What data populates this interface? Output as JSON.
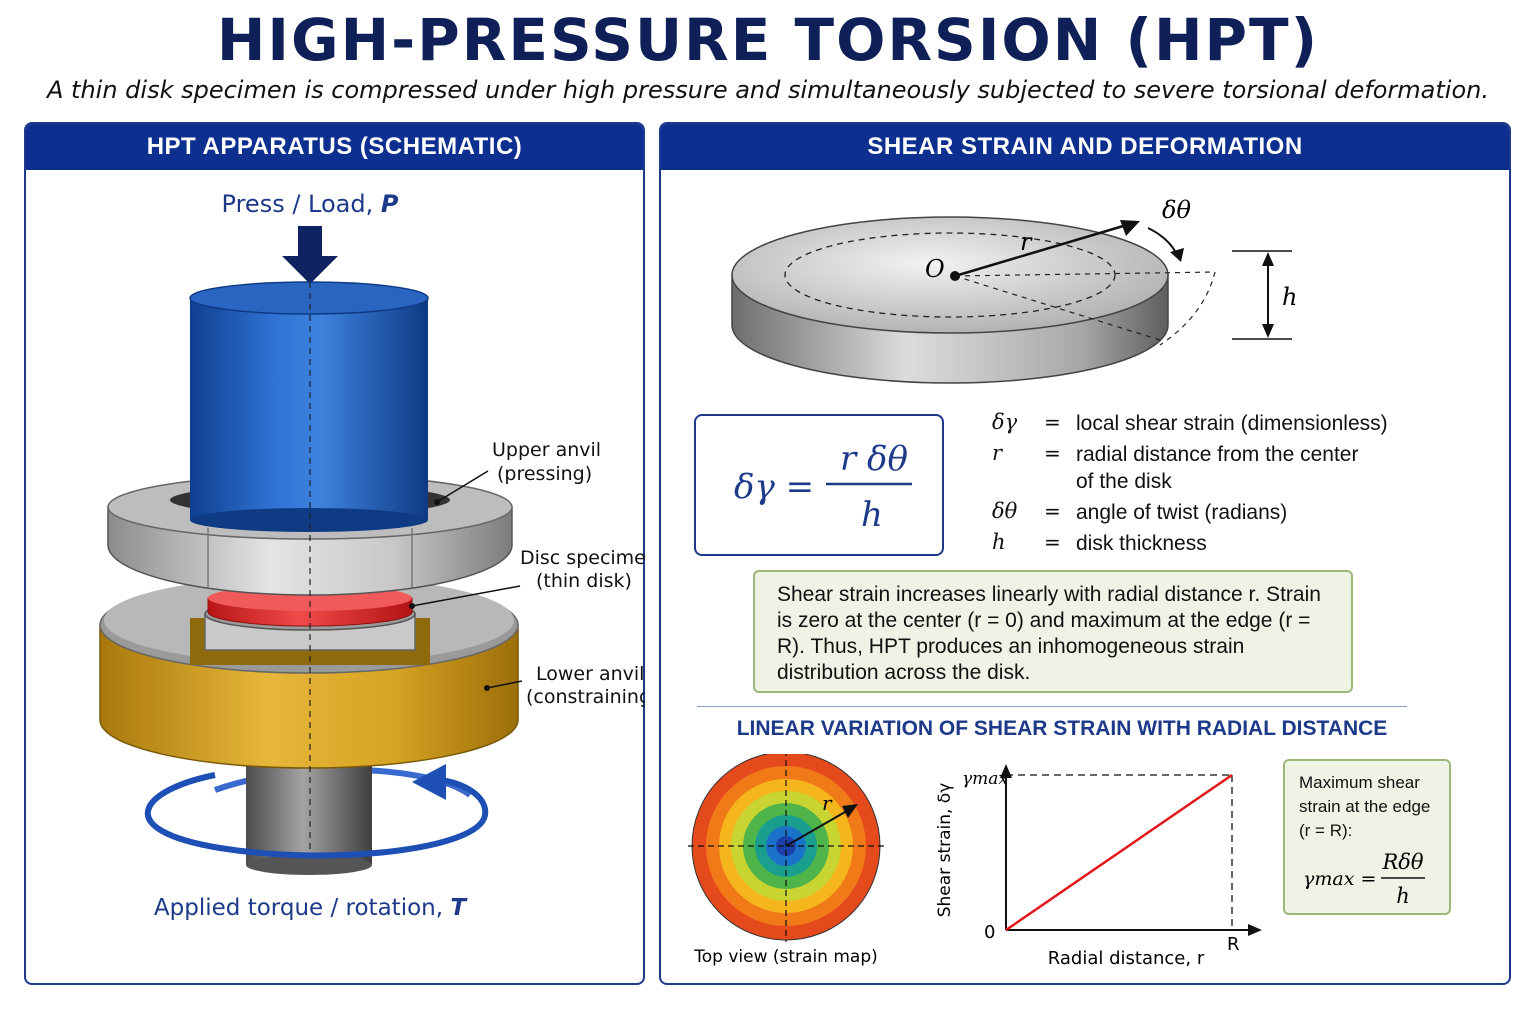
{
  "title": "HIGH-PRESSURE TORSION (HPT)",
  "subtitle": "A thin disk specimen is compressed under high pressure and simultaneously subjected to severe torsional deformation.",
  "left_panel": {
    "header": "HPT APPARATUS (SCHEMATIC)",
    "load_label": "Press / Load, ",
    "load_symbol": "P",
    "upper_anvil": [
      "Upper anvil",
      "(pressing)"
    ],
    "disc_specimen": [
      "Disc specimen",
      "(thin disk)"
    ],
    "lower_anvil": [
      "Lower anvil",
      "(constraining)"
    ],
    "torque_label": "Applied torque / rotation, ",
    "torque_symbol": "T"
  },
  "right_panel": {
    "header": "SHEAR STRAIN AND DEFORMATION",
    "disk_labels": {
      "origin": "O",
      "radius": "r",
      "twist": "δθ",
      "thickness": "h"
    },
    "formula": {
      "lhs": "δγ =",
      "numerator": "r δθ",
      "denominator": "h"
    },
    "legend": [
      {
        "symbol": "δγ",
        "eq": "=",
        "definition": "local shear strain (dimensionless)"
      },
      {
        "symbol": "r",
        "eq": "=",
        "definition": "radial distance from the center of the disk"
      },
      {
        "symbol": "δθ",
        "eq": "=",
        "definition": "angle of twist (radians)"
      },
      {
        "symbol": "h",
        "eq": "=",
        "definition": "disk thickness"
      }
    ],
    "note": "Shear strain increases linearly with radial distance r. Strain is zero at the center (r = 0) and maximum at the edge (r = R). Thus, HPT produces an inhomogeneous strain distribution across the disk.",
    "section_title": "LINEAR VARIATION OF SHEAR STRAIN WITH RADIAL DISTANCE",
    "strain_map": {
      "caption": "Top view (strain map)",
      "radius_label": "r"
    },
    "plot": {
      "ylabel": "Shear strain, δγ",
      "xlabel": "Radial distance, r",
      "y_max_label": "γmax",
      "origin_label": "0",
      "x_end_label": "R",
      "line_color": "#e3161b"
    },
    "max_box": {
      "text": [
        "Maximum shear",
        "strain at the edge",
        "(r = R):"
      ],
      "lhs": "γmax =",
      "numerator": "Rδθ",
      "denominator": "h"
    }
  },
  "colors": {
    "title": "#0f1f57",
    "header_bg": "#0d2f8f",
    "upper_anvil": "#1e5bb5",
    "specimen": "#e32a2a",
    "lower_anvil": "#d4a21a",
    "arrow": "#1d3a8a"
  }
}
